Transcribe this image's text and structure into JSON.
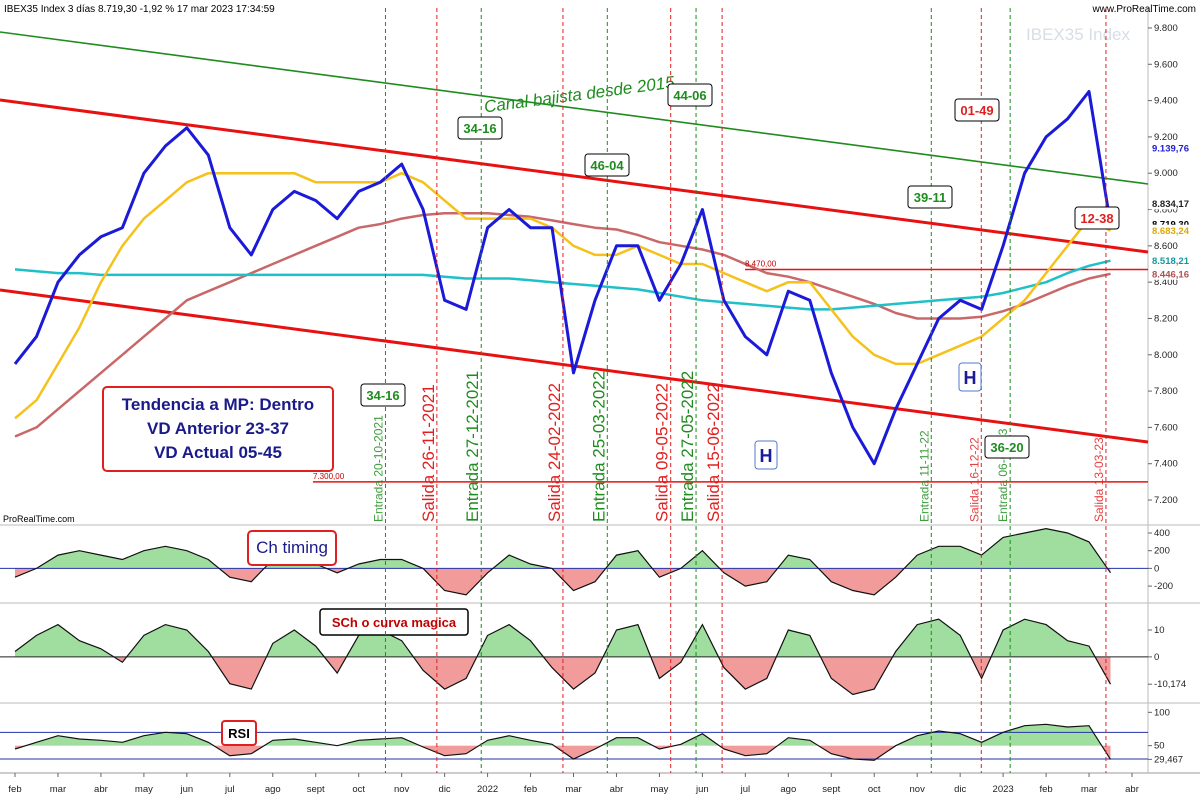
{
  "header": {
    "title": "IBEX35 Index 3 días 8.719,30 -1,92 % 17 mar 2023 17:34:59",
    "site": "www.ProRealTime.com",
    "watermark": "IBEX35 Index",
    "brand": "ProRealTime.com"
  },
  "chart_data": [
    {
      "type": "line",
      "channel_label": "Canal bajista desde 2015",
      "ylim": [
        7090,
        9910
      ],
      "yticks": [
        {
          "value": 7200,
          "label": "7.200"
        },
        {
          "value": 7400,
          "label": "7.400"
        },
        {
          "value": 7600,
          "label": "7.600"
        },
        {
          "value": 7800,
          "label": "7.800"
        },
        {
          "value": 8000,
          "label": "8.000"
        },
        {
          "value": 8200,
          "label": "8.200"
        },
        {
          "value": 8400,
          "label": "8.400"
        },
        {
          "value": 8600,
          "label": "8.600"
        },
        {
          "value": 8800,
          "label": "8.800"
        },
        {
          "value": 9000,
          "label": "9.000"
        },
        {
          "value": 9200,
          "label": "9.200"
        },
        {
          "value": 9400,
          "label": "9.400"
        },
        {
          "value": 9600,
          "label": "9.600"
        },
        {
          "value": 9800,
          "label": "9.800"
        }
      ],
      "series": [
        {
          "color": "#c86868",
          "values": [
            7550,
            7600,
            7700,
            7800,
            7900,
            8000,
            8100,
            8200,
            8300,
            8350,
            8400,
            8450,
            8500,
            8550,
            8600,
            8650,
            8700,
            8720,
            8750,
            8770,
            8780,
            8780,
            8780,
            8770,
            8760,
            8740,
            8720,
            8700,
            8690,
            8660,
            8620,
            8600,
            8580,
            8550,
            8500,
            8450,
            8430,
            8400,
            8360,
            8320,
            8280,
            8230,
            8200,
            8200,
            8200,
            8210,
            8240,
            8280,
            8330,
            8380,
            8420,
            8446,
            null
          ]
        },
        {
          "color": "#20c0c8",
          "values": [
            8470,
            8460,
            8450,
            8450,
            8440,
            8440,
            8440,
            8440,
            8440,
            8440,
            8440,
            8440,
            8440,
            8440,
            8440,
            8440,
            8440,
            8440,
            8440,
            8440,
            8430,
            8420,
            8420,
            8420,
            8410,
            8400,
            8390,
            8380,
            8370,
            8360,
            8340,
            8320,
            8300,
            8290,
            8280,
            8270,
            8260,
            8250,
            8250,
            8260,
            8270,
            8280,
            8290,
            8300,
            8310,
            8320,
            8340,
            8370,
            8400,
            8450,
            8490,
            8518,
            null
          ]
        },
        {
          "color": "#f5c21b",
          "values": [
            7650,
            7750,
            7950,
            8150,
            8400,
            8600,
            8750,
            8850,
            8950,
            9000,
            9000,
            9000,
            9000,
            9000,
            8950,
            8950,
            8950,
            8950,
            9000,
            8950,
            8850,
            8750,
            8750,
            8750,
            8750,
            8700,
            8600,
            8550,
            8550,
            8600,
            8550,
            8500,
            8500,
            8450,
            8400,
            8350,
            8400,
            8400,
            8250,
            8100,
            8000,
            7950,
            7950,
            8000,
            8050,
            8100,
            8200,
            8300,
            8450,
            8600,
            8750,
            8683,
            null
          ]
        },
        {
          "color": "#1a1ad8",
          "values": [
            7950,
            8100,
            8400,
            8550,
            8650,
            8700,
            9000,
            9150,
            9250,
            9100,
            8700,
            8550,
            8800,
            8900,
            8850,
            8750,
            8900,
            8950,
            9050,
            8800,
            8300,
            8250,
            8700,
            8800,
            8700,
            8700,
            7900,
            8300,
            8600,
            8600,
            8300,
            8500,
            8800,
            8300,
            8100,
            8000,
            8350,
            8300,
            7900,
            7600,
            7400,
            7700,
            7950,
            8200,
            8300,
            8250,
            8600,
            9000,
            9200,
            9300,
            9450,
            8720,
            null
          ]
        }
      ],
      "levels": [
        {
          "value": 8470,
          "label": "8.470,00"
        },
        {
          "value": 7300,
          "label": "7.300,00"
        }
      ],
      "price_labels": [
        {
          "value": 9139.76,
          "label": "9.139,76",
          "color": "#2020d0"
        },
        {
          "value": 8834.17,
          "label": "8.834,17",
          "color": "#222222"
        },
        {
          "value": 8719.3,
          "label": "8.719,30",
          "color": "#000000"
        },
        {
          "value": 8683.24,
          "label": "8.683,24",
          "color": "#e0a800"
        },
        {
          "value": 8518.21,
          "label": "8.518,21",
          "color": "#109aa0"
        },
        {
          "value": 8446.16,
          "label": "8.446,16",
          "color": "#b05050"
        }
      ],
      "events": [
        {
          "label": "Entrada 20-10-2021",
          "color": "#1e8c1e"
        },
        {
          "label": "Salida 26-11-2021",
          "color": "#e02020"
        },
        {
          "label": "Entrada 27-12-2021",
          "color": "#1e8c1e"
        },
        {
          "label": "Salida 24-02-2022",
          "color": "#e02020"
        },
        {
          "label": "Entrada 25-03-2022",
          "color": "#1e8c1e"
        },
        {
          "label": "Salida 09-05-2022",
          "color": "#e02020"
        },
        {
          "label": "Entrada 27-05-2022",
          "color": "#1e8c1e"
        },
        {
          "label": "Salida 15-06-2022",
          "color": "#e02020"
        },
        {
          "label": "Entrada 11-11-22",
          "color": "#1e8c1e"
        },
        {
          "label": "Salida 16-12-22",
          "color": "#e02020"
        },
        {
          "label": "Entrada 06-01-23",
          "color": "#1e8c1e"
        },
        {
          "label": "Salida 13-03-23",
          "color": "#e02020"
        }
      ],
      "annotations": [
        {
          "text": "34-16",
          "color": "#1e8c1e"
        },
        {
          "text": "44-06",
          "color": "#1e8c1e"
        },
        {
          "text": "46-04",
          "color": "#1e8c1e"
        },
        {
          "text": "39-11",
          "color": "#1e8c1e"
        },
        {
          "text": "34-16",
          "color": "#1e8c1e"
        },
        {
          "text": "36-20",
          "color": "#1e8c1e"
        },
        {
          "text": "01-49",
          "color": "#e02020"
        },
        {
          "text": "12-38",
          "color": "#e02020"
        },
        {
          "text": "H",
          "color": "#1a1a9a"
        },
        {
          "text": "H",
          "color": "#1a1a9a"
        }
      ],
      "note": [
        "Tendencia a MP: Dentro",
        "VD Anterior 23-37",
        "VD Actual 05-45"
      ]
    },
    {
      "type": "area",
      "title": "Ch timing",
      "ylim": [
        -380,
        468
      ],
      "yticks": [
        400,
        200,
        0,
        -200
      ],
      "values": [
        -100,
        0,
        150,
        200,
        150,
        100,
        200,
        250,
        200,
        100,
        -100,
        -150,
        100,
        150,
        50,
        -50,
        50,
        100,
        100,
        0,
        -250,
        -300,
        -50,
        150,
        50,
        0,
        -250,
        -150,
        150,
        200,
        -100,
        0,
        200,
        -50,
        -200,
        -150,
        150,
        100,
        -150,
        -250,
        -300,
        -100,
        150,
        250,
        250,
        150,
        350,
        400,
        450,
        400,
        300,
        -50,
        null
      ]
    },
    {
      "type": "area",
      "title": "SCh o curva magica",
      "ylim": [
        -16.8,
        19.3
      ],
      "yticks": [
        10,
        0,
        {
          "value": -10.174,
          "label": "-10,174"
        }
      ],
      "values": [
        2,
        8,
        12,
        6,
        3,
        -2,
        8,
        12,
        10,
        2,
        -10,
        -12,
        5,
        10,
        4,
        -6,
        8,
        10,
        6,
        -5,
        -12,
        -8,
        8,
        12,
        6,
        -4,
        -12,
        -6,
        10,
        12,
        -8,
        -2,
        12,
        -4,
        -12,
        -8,
        10,
        8,
        -8,
        -14,
        -12,
        2,
        12,
        14,
        8,
        -8,
        10,
        14,
        12,
        6,
        4,
        -10.174,
        null
      ]
    },
    {
      "type": "area",
      "title": "RSI",
      "ylim": [
        12,
        111
      ],
      "yticks": [
        100,
        50,
        {
          "value": 29.467,
          "label": "29,467"
        }
      ],
      "levels": [
        70,
        30
      ],
      "categories": [
        "feb",
        null,
        "mar",
        null,
        "abr",
        null,
        "may",
        null,
        "jun",
        null,
        "jul",
        null,
        "ago",
        null,
        "sept",
        null,
        "oct",
        null,
        "nov",
        null,
        "dic",
        null,
        "2022",
        null,
        "feb",
        null,
        "mar",
        null,
        "abr",
        null,
        "may",
        null,
        "jun",
        null,
        "jul",
        null,
        "ago",
        null,
        "sept",
        null,
        "oct",
        null,
        "nov",
        null,
        "dic",
        null,
        "2023",
        null,
        "feb",
        null,
        "mar",
        null,
        "abr"
      ],
      "values": [
        45,
        55,
        65,
        60,
        58,
        55,
        65,
        70,
        68,
        55,
        35,
        38,
        58,
        60,
        55,
        50,
        58,
        60,
        62,
        48,
        35,
        38,
        58,
        65,
        58,
        52,
        30,
        45,
        62,
        62,
        45,
        52,
        68,
        45,
        35,
        38,
        62,
        58,
        38,
        30,
        28,
        50,
        65,
        72,
        68,
        55,
        70,
        80,
        82,
        78,
        80,
        29.467,
        null
      ]
    }
  ]
}
